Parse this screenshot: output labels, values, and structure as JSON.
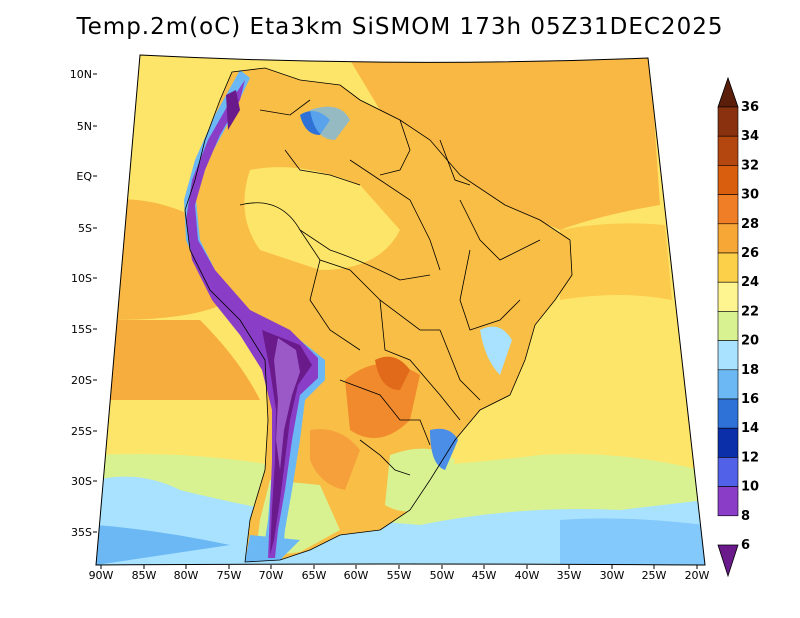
{
  "title": "Temp.2m(oC) Eta3km SiSMOM 173h 05Z31DEC2025",
  "map": {
    "variable": "2 m temperature",
    "unit": "oC",
    "lat_labels": [
      "10N",
      "5N",
      "EQ",
      "5S",
      "10S",
      "15S",
      "20S",
      "25S",
      "30S",
      "35S"
    ],
    "lon_labels": [
      "90W",
      "85W",
      "80W",
      "75W",
      "70W",
      "65W",
      "60W",
      "55W",
      "50W",
      "45W",
      "40W",
      "35W",
      "30W",
      "25W",
      "20W"
    ]
  },
  "colorbar": {
    "labels": [
      "36",
      "34",
      "32",
      "30",
      "28",
      "26",
      "24",
      "22",
      "20",
      "18",
      "16",
      "14",
      "12",
      "10",
      "8",
      "6"
    ],
    "colors": [
      "#5a1e0a",
      "#8a3210",
      "#b4460f",
      "#d95f0e",
      "#f07e26",
      "#f7a736",
      "#fdd04a",
      "#fef590",
      "#d9f291",
      "#a8e2ff",
      "#6cb8f5",
      "#2e72d8",
      "#0a2fa8",
      "#5262e8",
      "#8a3ec8",
      "#6a1a8a"
    ]
  }
}
